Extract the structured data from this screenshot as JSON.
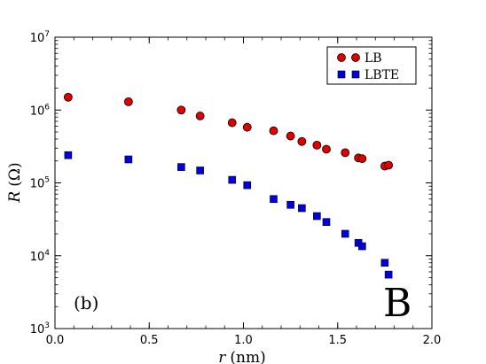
{
  "chart_data": {
    "type": "scatter",
    "title": "",
    "xlabel_var": "r",
    "xlabel_unit": "(nm)",
    "ylabel_var": "R",
    "ylabel_unit": "(Ω)",
    "xlim": [
      0.0,
      2.0
    ],
    "ylim": [
      1000,
      10000000
    ],
    "yscale": "log",
    "grid": false,
    "legend_position": "top-right",
    "x_ticks": [
      "0.0",
      "0.5",
      "1.0",
      "1.5",
      "2.0"
    ],
    "y_tick_exponents": [
      "3",
      "4",
      "5",
      "6",
      "7"
    ],
    "y_tick_base": "10",
    "panel_label": "(b)",
    "corner_letter": "B",
    "series": [
      {
        "name": "LB",
        "marker": "circle",
        "color": "#e00000",
        "points": [
          [
            0.07,
            1500000
          ],
          [
            0.39,
            1300000
          ],
          [
            0.67,
            1000000
          ],
          [
            0.77,
            830000
          ],
          [
            0.94,
            670000
          ],
          [
            1.02,
            580000
          ],
          [
            1.16,
            520000
          ],
          [
            1.25,
            440000
          ],
          [
            1.31,
            370000
          ],
          [
            1.39,
            330000
          ],
          [
            1.44,
            290000
          ],
          [
            1.54,
            260000
          ],
          [
            1.61,
            220000
          ],
          [
            1.63,
            215000
          ],
          [
            1.75,
            170000
          ],
          [
            1.77,
            175000
          ]
        ]
      },
      {
        "name": "LBTE",
        "marker": "square",
        "color": "#0000e0",
        "points": [
          [
            0.07,
            240000
          ],
          [
            0.39,
            210000
          ],
          [
            0.67,
            165000
          ],
          [
            0.77,
            148000
          ],
          [
            0.94,
            110000
          ],
          [
            1.02,
            93000
          ],
          [
            1.16,
            60000
          ],
          [
            1.25,
            50000
          ],
          [
            1.31,
            45000
          ],
          [
            1.39,
            35000
          ],
          [
            1.44,
            29000
          ],
          [
            1.54,
            20000
          ],
          [
            1.61,
            15000
          ],
          [
            1.63,
            13500
          ],
          [
            1.75,
            8000
          ],
          [
            1.77,
            5500
          ]
        ]
      }
    ]
  }
}
